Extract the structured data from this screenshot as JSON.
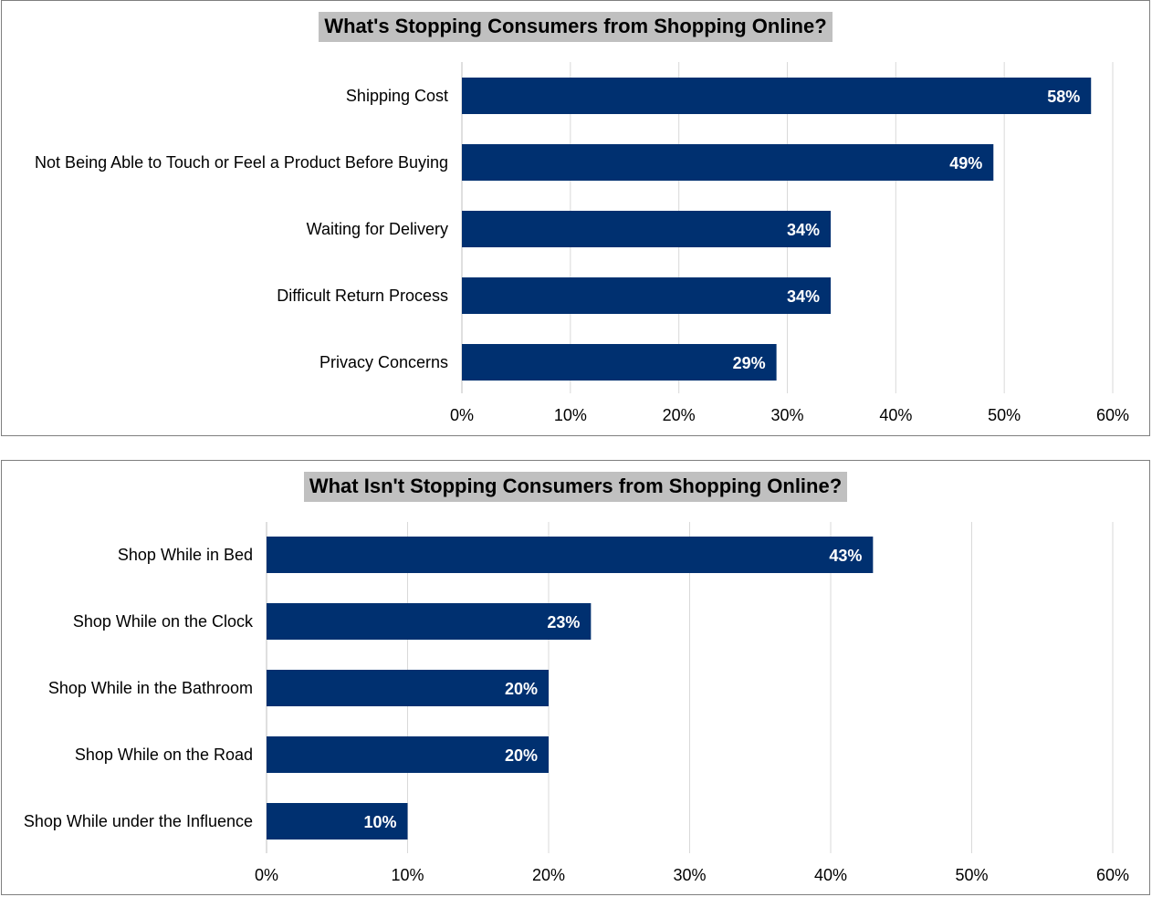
{
  "colors": {
    "bar": "#003070",
    "grid": "#d9d9d9",
    "title_bg": "#c0c0c0"
  },
  "chart_data": [
    {
      "type": "bar",
      "orientation": "horizontal",
      "title": "What's Stopping Consumers from Shopping Online?",
      "categories": [
        "Shipping Cost",
        "Not Being Able to Touch or Feel a Product Before Buying",
        "Waiting for Delivery",
        "Difficult Return Process",
        "Privacy Concerns"
      ],
      "values": [
        58,
        49,
        34,
        34,
        29
      ],
      "data_labels": [
        "58%",
        "49%",
        "34%",
        "34%",
        "29%"
      ],
      "xlim": [
        0,
        60
      ],
      "xticks": [
        0,
        10,
        20,
        30,
        40,
        50,
        60
      ],
      "xtick_labels": [
        "0%",
        "10%",
        "20%",
        "30%",
        "40%",
        "50%",
        "60%"
      ],
      "xlabel": "",
      "ylabel": "",
      "grid": true,
      "legend": "none"
    },
    {
      "type": "bar",
      "orientation": "horizontal",
      "title": "What Isn't Stopping Consumers from Shopping Online?",
      "categories": [
        "Shop While in Bed",
        "Shop While on the Clock",
        "Shop While in the Bathroom",
        "Shop While on the Road",
        "Shop While under the Influence"
      ],
      "values": [
        43,
        23,
        20,
        20,
        10
      ],
      "data_labels": [
        "43%",
        "23%",
        "20%",
        "20%",
        "10%"
      ],
      "xlim": [
        0,
        60
      ],
      "xticks": [
        0,
        10,
        20,
        30,
        40,
        50,
        60
      ],
      "xtick_labels": [
        "0%",
        "10%",
        "20%",
        "30%",
        "40%",
        "50%",
        "60%"
      ],
      "xlabel": "",
      "ylabel": "",
      "grid": true,
      "legend": "none"
    }
  ]
}
